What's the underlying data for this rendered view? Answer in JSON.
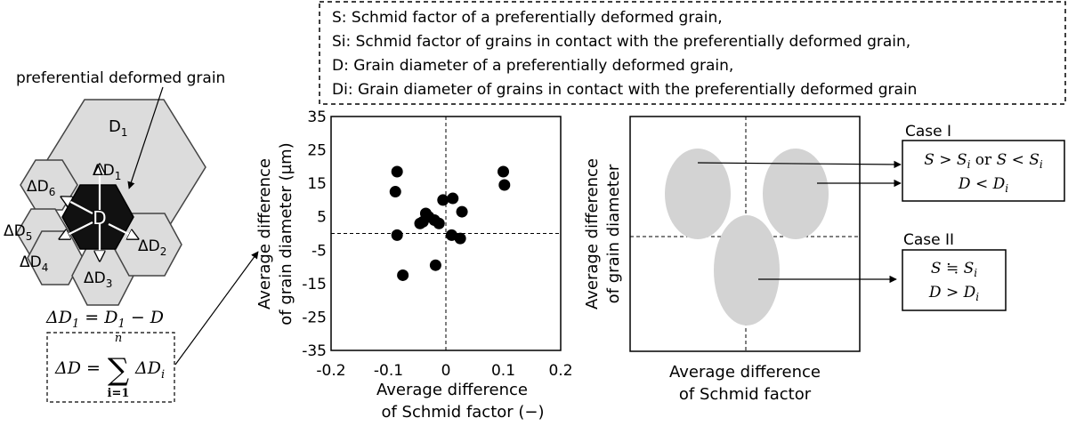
{
  "legend_box": {
    "lines": [
      "S: Schmid factor of a preferentially deformed grain,",
      "Si: Schmid factor of grains in contact with the preferentially deformed grain,",
      "D: Grain diameter of a preferentially deformed grain,",
      "Di: Grain diameter of grains in contact with the preferentially deformed grain"
    ]
  },
  "schematic": {
    "callout": "preferential deformed grain",
    "center_label": "D",
    "grain_labels": {
      "D1": {
        "base": "D",
        "sub": "1"
      },
      "dD1": {
        "base": "ΔD",
        "sub": "1"
      },
      "dD2": {
        "base": "ΔD",
        "sub": "2"
      },
      "dD3": {
        "base": "ΔD",
        "sub": "3"
      },
      "dD4": {
        "base": "ΔD",
        "sub": "4"
      },
      "dD5": {
        "base": "ΔD",
        "sub": "5"
      },
      "dD6": {
        "base": "ΔD",
        "sub": "6"
      }
    },
    "eq1": {
      "lhs": "ΔD",
      "lhs_sub": "1",
      "rhs": "= D",
      "rhs_sub": "1",
      "tail": " − D"
    },
    "sum": {
      "lhs": "ΔD =",
      "upper": "n",
      "lower": "i=1",
      "term": "ΔD",
      "term_sub": "i"
    }
  },
  "chart_data": {
    "type": "scatter",
    "xlabel_lines": [
      "Average difference",
      "of Schmid factor (−)"
    ],
    "ylabel_lines": [
      "Average difference",
      "of grain diameter (µm)"
    ],
    "xlim": [
      -0.2,
      0.2
    ],
    "ylim": [
      -35,
      35
    ],
    "x_ticks": [
      "-0.2",
      "-0.1",
      "0",
      "0.1",
      "0.2"
    ],
    "y_ticks": [
      "35",
      "25",
      "15",
      "5",
      "-5",
      "-15",
      "-25",
      "-35"
    ],
    "reference_lines": {
      "x": 0,
      "y": 0,
      "style": "dashed"
    },
    "points": [
      {
        "x": -0.085,
        "y": 18.5
      },
      {
        "x": -0.088,
        "y": 12.5
      },
      {
        "x": -0.085,
        "y": -0.5
      },
      {
        "x": -0.075,
        "y": -12.5
      },
      {
        "x": -0.045,
        "y": 3.0
      },
      {
        "x": -0.04,
        "y": 3.5
      },
      {
        "x": -0.035,
        "y": 6.0
      },
      {
        "x": -0.03,
        "y": 5.0
      },
      {
        "x": -0.02,
        "y": 4.0
      },
      {
        "x": -0.012,
        "y": 3.0
      },
      {
        "x": -0.018,
        "y": -9.5
      },
      {
        "x": -0.005,
        "y": 10.0
      },
      {
        "x": 0.012,
        "y": 10.5
      },
      {
        "x": 0.01,
        "y": -0.5
      },
      {
        "x": 0.025,
        "y": -1.5
      },
      {
        "x": 0.028,
        "y": 6.5
      },
      {
        "x": 0.1,
        "y": 18.5
      },
      {
        "x": 0.102,
        "y": 14.5
      }
    ]
  },
  "concept_plot": {
    "xlabel_lines": [
      "Average difference",
      "of Schmid factor"
    ],
    "ylabel_lines": [
      "Average difference",
      "of grain diameter"
    ]
  },
  "case1": {
    "title": "Case I",
    "line1_a": "S > S",
    "line1_a_sub": "i",
    "line1_or": " or ",
    "line1_b": "S < S",
    "line1_b_sub": "i",
    "line2": "D < D",
    "line2_sub": "i"
  },
  "case2": {
    "title": "Case II",
    "line1": "S ≒ S",
    "line1_sub": "i",
    "line2": "D > D",
    "line2_sub": "i"
  }
}
